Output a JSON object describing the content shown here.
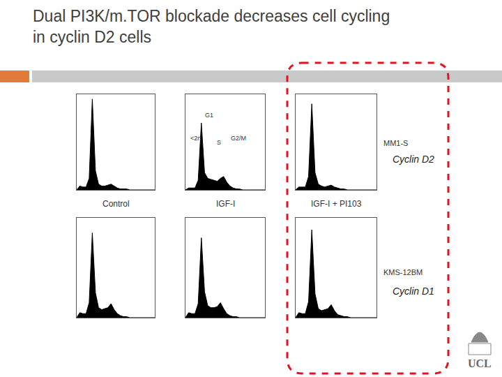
{
  "slide_title": [
    "Dual PI3K/m.TOR blockade decreases cell cycling",
    "in cyclin D2 cells"
  ],
  "rows": [
    {
      "cell_line": "MM1-S",
      "cyclin": "Cyclin D2"
    },
    {
      "cell_line": "KMS-12BM",
      "cyclin": "Cyclin D1"
    }
  ],
  "logo": "UCL",
  "chart_data": [
    {
      "type": "area",
      "row": 0,
      "x_label": "Control",
      "color": "#000000",
      "tick_labels": false,
      "xlim": [
        0,
        250
      ],
      "ylim": [
        0,
        100
      ],
      "x": [
        0,
        10,
        20,
        30,
        40,
        50,
        60,
        70,
        80,
        90,
        100,
        110,
        120,
        130,
        140,
        150,
        160,
        170,
        180,
        190,
        200,
        210,
        220,
        230,
        240,
        250
      ],
      "values": [
        0,
        4,
        3,
        3,
        12,
        95,
        20,
        6,
        4,
        4,
        5,
        6,
        4,
        2,
        1,
        1,
        1,
        0,
        0,
        0,
        0,
        0,
        0,
        0,
        0,
        0
      ]
    },
    {
      "type": "area",
      "row": 0,
      "x_label": "IGF-I",
      "color": "#000000",
      "tick_labels": false,
      "xlim": [
        0,
        250
      ],
      "ylim": [
        0,
        100
      ],
      "annotations": [
        "G1",
        "<2n",
        "S",
        "G2/M"
      ],
      "x": [
        0,
        10,
        20,
        30,
        40,
        50,
        60,
        70,
        80,
        90,
        100,
        110,
        120,
        130,
        140,
        150,
        160,
        170,
        180,
        190,
        200,
        210,
        220,
        230,
        240,
        250
      ],
      "values": [
        0,
        2,
        2,
        2,
        10,
        70,
        18,
        12,
        11,
        10,
        9,
        12,
        14,
        8,
        4,
        2,
        1,
        1,
        0,
        0,
        0,
        0,
        0,
        0,
        0,
        0
      ]
    },
    {
      "type": "area",
      "row": 0,
      "x_label": "IGF-I + PI103",
      "color": "#000000",
      "tick_labels": false,
      "xlim": [
        0,
        250
      ],
      "ylim": [
        0,
        100
      ],
      "x": [
        0,
        10,
        20,
        30,
        40,
        50,
        60,
        70,
        80,
        90,
        100,
        110,
        120,
        130,
        140,
        150,
        160,
        170,
        180,
        190,
        200,
        210,
        220,
        230,
        240,
        250
      ],
      "values": [
        0,
        3,
        3,
        3,
        14,
        90,
        18,
        6,
        4,
        3,
        4,
        5,
        3,
        2,
        1,
        1,
        0,
        0,
        0,
        0,
        0,
        0,
        0,
        0,
        0,
        0
      ]
    },
    {
      "type": "area",
      "row": 1,
      "color": "#000000",
      "tick_labels": false,
      "xlim": [
        0,
        250
      ],
      "ylim": [
        0,
        100
      ],
      "x": [
        0,
        10,
        20,
        30,
        40,
        50,
        60,
        70,
        80,
        90,
        100,
        110,
        120,
        130,
        140,
        150,
        160,
        170,
        180,
        190,
        200,
        210,
        220,
        230,
        240,
        250
      ],
      "values": [
        0,
        5,
        4,
        4,
        15,
        85,
        25,
        10,
        8,
        9,
        10,
        14,
        8,
        4,
        2,
        1,
        1,
        0,
        0,
        0,
        0,
        0,
        0,
        0,
        0,
        0
      ]
    },
    {
      "type": "area",
      "row": 1,
      "color": "#000000",
      "tick_labels": false,
      "xlim": [
        0,
        250
      ],
      "ylim": [
        0,
        100
      ],
      "x": [
        0,
        10,
        20,
        30,
        40,
        50,
        60,
        70,
        80,
        90,
        100,
        110,
        120,
        130,
        140,
        150,
        160,
        170,
        180,
        190,
        200,
        210,
        220,
        230,
        240,
        250
      ],
      "values": [
        0,
        5,
        4,
        4,
        14,
        80,
        26,
        12,
        10,
        10,
        11,
        15,
        9,
        4,
        2,
        1,
        1,
        0,
        0,
        0,
        0,
        0,
        0,
        0,
        0,
        0
      ]
    },
    {
      "type": "area",
      "row": 1,
      "color": "#000000",
      "tick_labels": false,
      "xlim": [
        0,
        250
      ],
      "ylim": [
        0,
        100
      ],
      "x": [
        0,
        10,
        20,
        30,
        40,
        50,
        60,
        70,
        80,
        90,
        100,
        110,
        120,
        130,
        140,
        150,
        160,
        170,
        180,
        190,
        200,
        210,
        220,
        230,
        240,
        250
      ],
      "values": [
        0,
        5,
        4,
        4,
        16,
        88,
        24,
        9,
        7,
        8,
        9,
        13,
        7,
        3,
        2,
        1,
        1,
        0,
        0,
        0,
        0,
        0,
        0,
        0,
        0,
        0
      ]
    }
  ]
}
